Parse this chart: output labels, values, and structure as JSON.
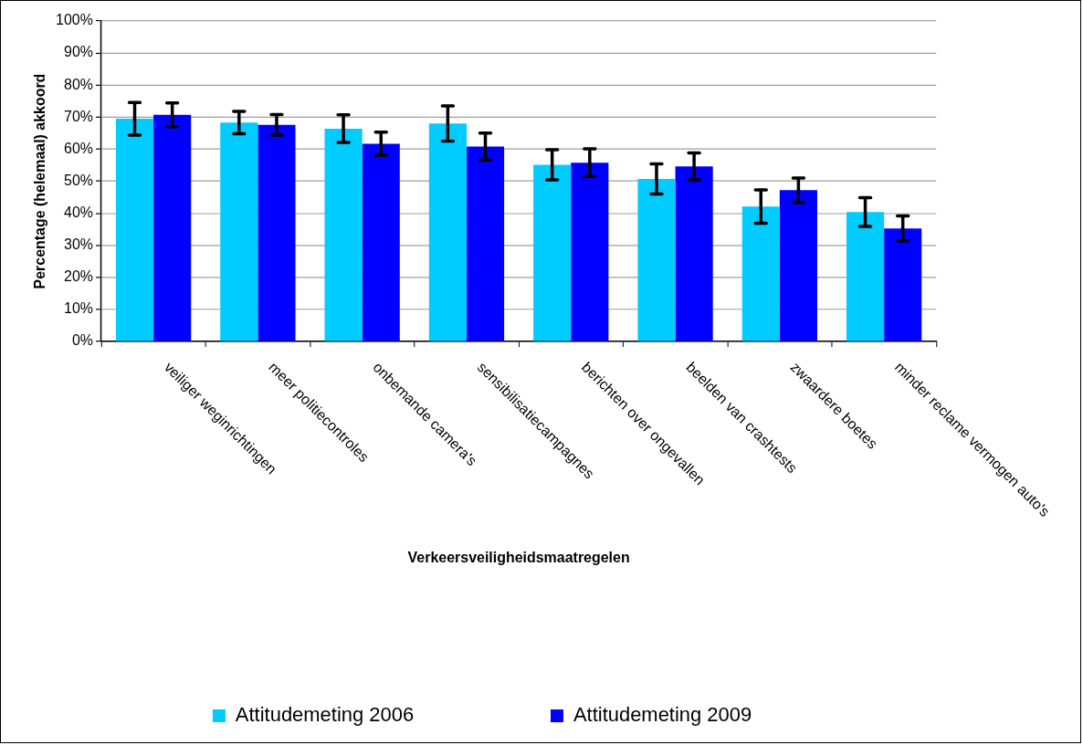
{
  "chart_data": {
    "type": "bar",
    "xlabel": "Verkeersveiligheidsmaatregelen",
    "ylabel": "Percentage (helemaal) akkoord",
    "categories": [
      "veiliger weginrichtingen",
      "meer politiecontroles",
      "onbemande camera's",
      "sensibilisatiecampagnes",
      "berichten over ongevallen",
      "beelden van crashtests",
      "zwaardere boetes",
      "minder reclame vermogen auto's"
    ],
    "series": [
      {
        "name": "Attitudemeting 2006",
        "color": "#00ccff",
        "values": [
          69.5,
          68.3,
          66.4,
          68.0,
          55.1,
          50.7,
          42.1,
          40.4
        ],
        "errors": [
          5.1,
          3.5,
          4.3,
          5.5,
          4.7,
          4.7,
          5.2,
          4.5
        ]
      },
      {
        "name": "Attitudemeting 2009",
        "color": "#0000ff",
        "values": [
          70.7,
          67.6,
          61.7,
          60.8,
          55.8,
          54.6,
          47.2,
          35.3
        ],
        "errors": [
          3.7,
          3.2,
          3.6,
          4.2,
          4.3,
          4.2,
          3.8,
          3.9
        ]
      }
    ],
    "ylim": [
      0,
      100
    ],
    "yticks": [
      {
        "value": 0,
        "label": "0%"
      },
      {
        "value": 10,
        "label": "10%"
      },
      {
        "value": 20,
        "label": "20%"
      },
      {
        "value": 30,
        "label": "30%"
      },
      {
        "value": 40,
        "label": "40%"
      },
      {
        "value": 50,
        "label": "50%"
      },
      {
        "value": 60,
        "label": "60%"
      },
      {
        "value": 70,
        "label": "70%"
      },
      {
        "value": 80,
        "label": "80%"
      },
      {
        "value": 90,
        "label": "90%"
      },
      {
        "value": 100,
        "label": "100%"
      }
    ],
    "grid": "y",
    "legend": "bottom"
  }
}
